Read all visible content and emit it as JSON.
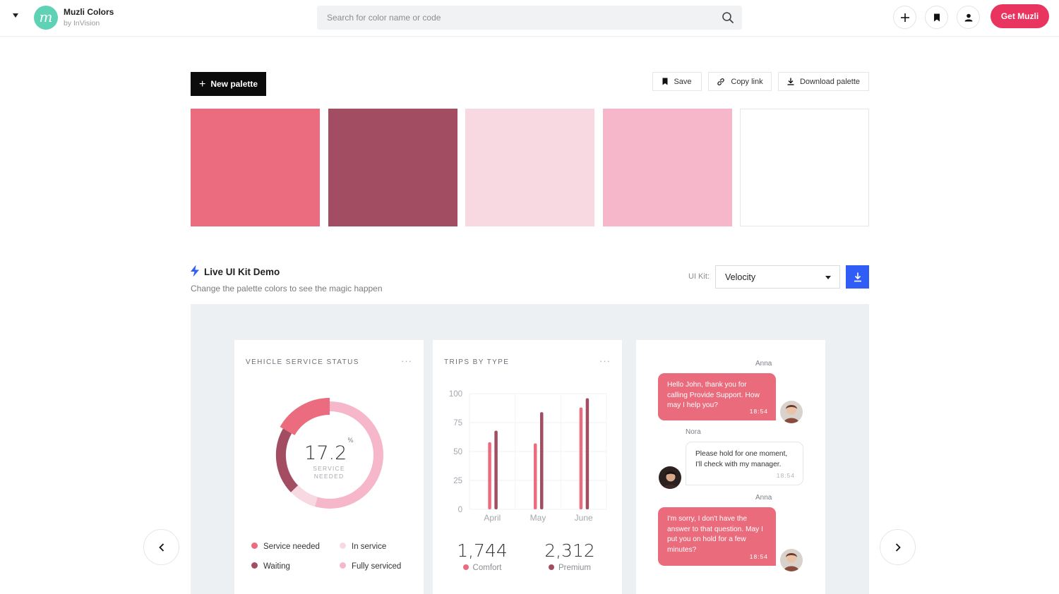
{
  "header": {
    "brand_name": "Muzli Colors",
    "brand_sub": "by InVision",
    "logo_letter": "m",
    "search_placeholder": "Search for color name or code",
    "get_muzli_label": "Get Muzli"
  },
  "toolbar": {
    "new_palette_label": "New palette",
    "save_label": "Save",
    "copy_link_label": "Copy link",
    "download_label": "Download palette"
  },
  "palette": {
    "colors": [
      "#eb6c7e",
      "#a34d63",
      "#f9d9e1",
      "#f5b7c9",
      "#ffffff"
    ]
  },
  "kit": {
    "title": "Live UI Kit Demo",
    "subtitle": "Change the palette colors to see the magic happen",
    "label": "UI Kit:",
    "selected": "Velocity"
  },
  "service_card": {
    "title": "VEHICLE SERVICE STATUS",
    "dots": "···",
    "value": "17.2",
    "unit": "%",
    "caption": "SERVICE NEEDED",
    "legend": [
      {
        "label": "Service needed",
        "color": "#eb6c7e"
      },
      {
        "label": "In service",
        "color": "#f9d9e1"
      },
      {
        "label": "Waiting",
        "color": "#a34d63"
      },
      {
        "label": "Fully serviced",
        "color": "#f5b7c9"
      }
    ]
  },
  "trips_card": {
    "title": "TRIPS BY TYPE",
    "dots": "···",
    "stats": [
      {
        "value": "1,744",
        "label": "Comfort",
        "color": "#eb6c7e"
      },
      {
        "value": "2,312",
        "label": "Premium",
        "color": "#a34d63"
      }
    ]
  },
  "chart_data": {
    "type": "bar",
    "categories": [
      "April",
      "May",
      "June"
    ],
    "series": [
      {
        "values": [
          58,
          57,
          88
        ],
        "color": "#eb6c7e"
      },
      {
        "values": [
          68,
          84,
          96
        ],
        "color": "#a34d63"
      }
    ],
    "yticks": [
      0,
      25,
      50,
      75,
      100
    ],
    "ylim": [
      0,
      100
    ],
    "xlabel": "",
    "ylabel": ""
  },
  "chat_card": {
    "messages": [
      {
        "name": "Anna",
        "text": "Hello John, thank you for calling Provide Support. How may I help you?",
        "time": "18:54",
        "side": "out"
      },
      {
        "name": "Nora",
        "text": "Please hold for one moment, I'll check with my manager.",
        "time": "18:54",
        "side": "in"
      },
      {
        "name": "Anna",
        "text": "I'm sorry, I don't have the answer to that question. May I put you on hold for a few minutes?",
        "time": "18:54",
        "side": "out"
      }
    ]
  }
}
